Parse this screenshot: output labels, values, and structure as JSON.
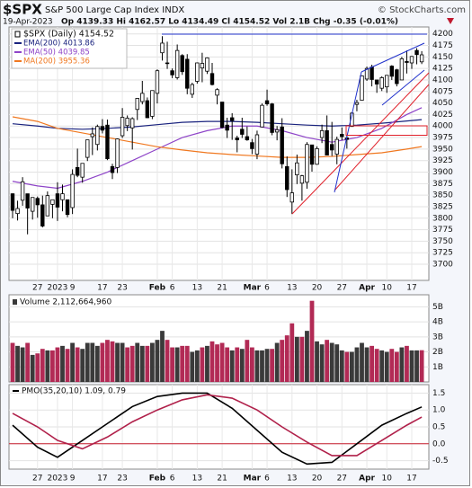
{
  "header": {
    "title": "$SPX",
    "subtitle": "S&P 500 Large Cap Index INDX",
    "copyright": "© StockCharts.com",
    "date": "19-Apr-2023",
    "quote": "Op 4139.33  Hi 4162.57  Lo 4134.49  Cl 4154.52  Vol 2.1B  Chg -0.35 (-0.01%)"
  },
  "chart_data": [
    {
      "type": "candlestick",
      "legend": "$SPX (Daily) 4154.52",
      "color": "#000000",
      "candles": [
        [
          3853,
          3854,
          3800,
          3817
        ],
        [
          3810,
          3838,
          3795,
          3821
        ],
        [
          3839,
          3889,
          3827,
          3879
        ],
        [
          3853,
          3853,
          3765,
          3822
        ],
        [
          3815,
          3845,
          3797,
          3845
        ],
        [
          3843,
          3847,
          3801,
          3829
        ],
        [
          3829,
          3849,
          3780,
          3783
        ],
        [
          3805,
          3858,
          3805,
          3849
        ],
        [
          3830,
          3840,
          3800,
          3840
        ],
        [
          3853,
          3878,
          3794,
          3824
        ],
        [
          3840,
          3873,
          3815,
          3853
        ],
        [
          3840,
          3840,
          3802,
          3808
        ],
        [
          3823,
          3906,
          3809,
          3895
        ],
        [
          3910,
          3951,
          3889,
          3893
        ],
        [
          3889,
          3919,
          3877,
          3919
        ],
        [
          3932,
          3970,
          3924,
          3970
        ],
        [
          3977,
          3997,
          3937,
          3983
        ],
        [
          3960,
          4003,
          3947,
          3999
        ],
        [
          3999,
          4015,
          3984,
          3991
        ],
        [
          4002,
          4014,
          3926,
          3929
        ],
        [
          3912,
          3918,
          3885,
          3899
        ],
        [
          3910,
          3973,
          3898,
          3972
        ],
        [
          3979,
          4039,
          3974,
          4019
        ],
        [
          4001,
          4023,
          3989,
          4017
        ],
        [
          3996,
          4019,
          3949,
          4016
        ],
        [
          4036,
          4061,
          4013,
          4060
        ],
        [
          4053,
          4098,
          4047,
          4071
        ],
        [
          4055,
          4062,
          4017,
          4018
        ],
        [
          4021,
          4077,
          4015,
          4077
        ],
        [
          4071,
          4123,
          4049,
          4120
        ],
        [
          4159,
          4195,
          4142,
          4180
        ],
        [
          4137,
          4183,
          4124,
          4136
        ],
        [
          4120,
          4125,
          4104,
          4111
        ],
        [
          4105,
          4177,
          4101,
          4164
        ],
        [
          4153,
          4156,
          4111,
          4118
        ],
        [
          4145,
          4156,
          4069,
          4082
        ],
        [
          4069,
          4094,
          4061,
          4090
        ],
        [
          4097,
          4138,
          4092,
          4137
        ],
        [
          4126,
          4159,
          4095,
          4136
        ],
        [
          4119,
          4149,
          4113,
          4148
        ],
        [
          4114,
          4137,
          4088,
          4090
        ],
        [
          4067,
          4082,
          4047,
          4079
        ],
        [
          4052,
          4052,
          3995,
          3997
        ],
        [
          4002,
          4018,
          3974,
          3991
        ],
        [
          4018,
          4028,
          3970,
          4012
        ],
        [
          3974,
          3979,
          3943,
          3970
        ],
        [
          3993,
          4018,
          3974,
          3982
        ],
        [
          3977,
          3999,
          3968,
          3970
        ],
        [
          3964,
          3972,
          3939,
          3951
        ],
        [
          3939,
          3990,
          3928,
          3981
        ],
        [
          3998,
          4049,
          3998,
          4045
        ],
        [
          4055,
          4079,
          4044,
          4048
        ],
        [
          4048,
          4050,
          3980,
          3986
        ],
        [
          3987,
          4000,
          3969,
          3992
        ],
        [
          3998,
          4017,
          3908,
          3918
        ],
        [
          3912,
          3934,
          3846,
          3862
        ],
        [
          3835,
          3906,
          3809,
          3855
        ],
        [
          3894,
          3938,
          3874,
          3920
        ],
        [
          3876,
          3894,
          3838,
          3892
        ],
        [
          3878,
          3965,
          3864,
          3960
        ],
        [
          3959,
          3959,
          3901,
          3917
        ],
        [
          3917,
          3956,
          3916,
          3951
        ],
        [
          3975,
          4003,
          3963,
          3990
        ],
        [
          3990,
          4023,
          3937,
          3937
        ],
        [
          3960,
          4009,
          3935,
          3948
        ],
        [
          3939,
          3977,
          3917,
          3971
        ],
        [
          3982,
          3997,
          3969,
          3977
        ],
        [
          3974,
          3980,
          3951,
          3971
        ],
        [
          3999,
          4030,
          3999,
          4028
        ],
        [
          4047,
          4057,
          4032,
          4051
        ],
        [
          4056,
          4110,
          4056,
          4109
        ],
        [
          4102,
          4129,
          4098,
          4125
        ],
        [
          4128,
          4133,
          4086,
          4101
        ],
        [
          4100,
          4100,
          4072,
          4091
        ],
        [
          4082,
          4108,
          4076,
          4105
        ],
        [
          4085,
          4110,
          4072,
          4110
        ],
        [
          4130,
          4132,
          4100,
          4108
        ],
        [
          4122,
          4124,
          4086,
          4092
        ],
        [
          4100,
          4150,
          4100,
          4146
        ],
        [
          4140,
          4164,
          4114,
          4138
        ],
        [
          4137,
          4152,
          4124,
          4151
        ],
        [
          4164,
          4169,
          4134,
          4155
        ],
        [
          4139.33,
          4162.57,
          4134.49,
          4154.52
        ]
      ],
      "series": [
        {
          "name": "EMA(200) 4013.86",
          "color": "#1a237e",
          "x": [
            0,
            5,
            9,
            14,
            19,
            24,
            29,
            34,
            39,
            44,
            49,
            54,
            59,
            64,
            69,
            74,
            79,
            82
          ],
          "values": [
            4005,
            4000,
            3995,
            3993,
            3995,
            3998,
            4003,
            4008,
            4010,
            4010,
            4008,
            4005,
            4002,
            4000,
            4002,
            4006,
            4011,
            4013.86
          ]
        },
        {
          "name": "EMA(50) 4039.85",
          "color": "#8e44c8",
          "x": [
            0,
            5,
            9,
            14,
            19,
            24,
            29,
            34,
            39,
            44,
            49,
            54,
            59,
            64,
            69,
            74,
            79,
            82
          ],
          "values": [
            3880,
            3870,
            3865,
            3880,
            3900,
            3925,
            3950,
            3975,
            3990,
            4000,
            4000,
            3990,
            3975,
            3965,
            3975,
            3995,
            4025,
            4039.85
          ]
        },
        {
          "name": "MA(200) 3955.36",
          "color": "#f07820",
          "x": [
            0,
            5,
            9,
            14,
            19,
            24,
            29,
            34,
            39,
            44,
            49,
            54,
            59,
            64,
            69,
            74,
            79,
            82
          ],
          "values": [
            4020,
            4010,
            3995,
            3985,
            3975,
            3965,
            3955,
            3948,
            3942,
            3938,
            3935,
            3932,
            3932,
            3934,
            3938,
            3942,
            3950,
            3955.36
          ]
        }
      ],
      "ylim": [
        3665,
        4215
      ],
      "yticks": [
        3700,
        3725,
        3750,
        3775,
        3800,
        3825,
        3850,
        3875,
        3900,
        3925,
        3950,
        3975,
        4000,
        4025,
        4050,
        4075,
        4100,
        4125,
        4150,
        4175,
        4200
      ],
      "xticks": [
        {
          "value": 5,
          "label": "27"
        },
        {
          "value": 9,
          "label": "2023"
        },
        {
          "value": 12,
          "label": "9"
        },
        {
          "value": 18,
          "label": "17"
        },
        {
          "value": 22,
          "label": "23"
        },
        {
          "value": 29,
          "label": "Feb"
        },
        {
          "value": 32,
          "label": "6"
        },
        {
          "value": 37,
          "label": "13"
        },
        {
          "value": 42,
          "label": "21"
        },
        {
          "value": 48,
          "label": "Mar"
        },
        {
          "value": 51,
          "label": "6"
        },
        {
          "value": 56,
          "label": "13"
        },
        {
          "value": 61,
          "label": "20"
        },
        {
          "value": 66,
          "label": "27"
        },
        {
          "value": 71,
          "label": "Apr"
        },
        {
          "value": 75,
          "label": "10"
        },
        {
          "value": 80,
          "label": "17"
        }
      ],
      "grid": true
    },
    {
      "type": "bar",
      "legend": "Volume 2,112,664,960",
      "up_color": "#3a3a3a",
      "down_color": "#b22a55",
      "values": [
        2.6,
        2.4,
        2.3,
        2.6,
        1.8,
        1.9,
        2.2,
        2.1,
        2.1,
        2.3,
        2.4,
        2.2,
        2.6,
        2.3,
        2.2,
        2.6,
        2.6,
        2.4,
        2.6,
        2.8,
        2.7,
        2.6,
        2.6,
        2.3,
        2.4,
        2.6,
        2.4,
        2.4,
        2.6,
        2.8,
        3.4,
        2.8,
        2.3,
        2.3,
        2.4,
        2.4,
        2.0,
        2.1,
        2.3,
        2.4,
        2.7,
        2.5,
        2.6,
        2.3,
        2.1,
        2.3,
        2.2,
        2.8,
        2.3,
        2.1,
        2.1,
        2.2,
        2.2,
        2.6,
        2.8,
        3.1,
        3.9,
        3.0,
        3.0,
        3.4,
        5.4,
        2.7,
        2.5,
        2.8,
        2.6,
        2.5,
        2.1,
        2.0,
        2.0,
        2.3,
        2.6,
        2.3,
        2.4,
        2.2,
        2.1,
        2.0,
        2.2,
        2.0,
        2.3,
        2.4,
        2.1,
        2.1,
        2.11266496
      ],
      "ylim": [
        0,
        5.8
      ],
      "yticks": [
        {
          "value": 1,
          "label": "1B"
        },
        {
          "value": 2,
          "label": "2B"
        },
        {
          "value": 3,
          "label": "3B"
        },
        {
          "value": 4,
          "label": "4B"
        },
        {
          "value": 5,
          "label": "5B"
        }
      ],
      "grid": true
    },
    {
      "type": "line",
      "legend": "PMO(35,20,10) 1.09, 0.79",
      "series": [
        {
          "name": "PMO",
          "color": "#000000",
          "x": [
            0,
            5,
            9,
            14,
            19,
            24,
            29,
            34,
            39,
            44,
            49,
            54,
            59,
            64,
            69,
            74,
            79,
            82
          ],
          "values": [
            0.55,
            -0.1,
            -0.4,
            0.1,
            0.6,
            1.1,
            1.4,
            1.5,
            1.5,
            1.05,
            0.4,
            -0.25,
            -0.6,
            -0.55,
            0.0,
            0.55,
            0.9,
            1.09
          ]
        },
        {
          "name": "Signal",
          "color": "#b0204a",
          "x": [
            0,
            5,
            9,
            14,
            19,
            24,
            29,
            34,
            39,
            44,
            49,
            54,
            59,
            64,
            69,
            74,
            79,
            82
          ],
          "values": [
            0.9,
            0.5,
            0.1,
            -0.15,
            0.2,
            0.65,
            1.0,
            1.3,
            1.45,
            1.35,
            1.0,
            0.5,
            0.05,
            -0.35,
            -0.35,
            0.1,
            0.55,
            0.79
          ]
        }
      ],
      "ylim": [
        -0.75,
        1.75
      ],
      "yticks": [
        -0.5,
        {
          "value": 0,
          "label": "0.0"
        },
        0.5,
        {
          "value": 1,
          "label": "1.0"
        },
        1.5
      ],
      "xticks": [
        {
          "value": 5,
          "label": "27"
        },
        {
          "value": 9,
          "label": "2023"
        },
        {
          "value": 12,
          "label": "9"
        },
        {
          "value": 18,
          "label": "17"
        },
        {
          "value": 22,
          "label": "23"
        },
        {
          "value": 29,
          "label": "Feb"
        },
        {
          "value": 32,
          "label": "6"
        },
        {
          "value": 37,
          "label": "13"
        },
        {
          "value": 42,
          "label": "21"
        },
        {
          "value": 48,
          "label": "Mar"
        },
        {
          "value": 51,
          "label": "6"
        },
        {
          "value": 56,
          "label": "13"
        },
        {
          "value": 61,
          "label": "20"
        },
        {
          "value": 66,
          "label": "27"
        },
        {
          "value": 71,
          "label": "Apr"
        },
        {
          "value": 75,
          "label": "10"
        },
        {
          "value": 80,
          "label": "17"
        }
      ],
      "grid": true
    }
  ]
}
